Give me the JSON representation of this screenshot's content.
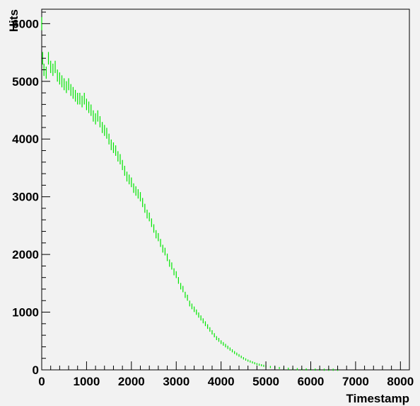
{
  "chart_data": {
    "type": "scatter",
    "title": "",
    "xlabel": "Timestamp",
    "ylabel": "Hits",
    "xlim": [
      0,
      8200
    ],
    "ylim": [
      0,
      6250
    ],
    "x_ticks": [
      0,
      1000,
      2000,
      3000,
      4000,
      5000,
      6000,
      7000,
      8000
    ],
    "x_tick_labels": [
      "0",
      "1000",
      "2000",
      "3000",
      "4000",
      "5000",
      "6000",
      "7000",
      "8000"
    ],
    "y_ticks": [
      0,
      1000,
      2000,
      3000,
      4000,
      5000,
      6000
    ],
    "y_tick_labels": [
      "0",
      "1000",
      "2000",
      "3000",
      "4000",
      "5000",
      "6000"
    ],
    "grid": false,
    "legend": "none",
    "marker_color": "#00e600",
    "background_color": "#f2f2f2",
    "series": [
      {
        "points": [
          [
            0,
            6000
          ],
          [
            20,
            5400
          ],
          [
            50,
            5200
          ],
          [
            100,
            5150
          ],
          [
            150,
            5400
          ],
          [
            200,
            5250
          ],
          [
            250,
            5200
          ],
          [
            300,
            5250
          ],
          [
            350,
            5100
          ],
          [
            400,
            5050
          ],
          [
            450,
            5000
          ],
          [
            500,
            4950
          ],
          [
            550,
            4900
          ],
          [
            600,
            4950
          ],
          [
            650,
            4850
          ],
          [
            700,
            4800
          ],
          [
            750,
            4750
          ],
          [
            800,
            4700
          ],
          [
            850,
            4700
          ],
          [
            900,
            4650
          ],
          [
            950,
            4700
          ],
          [
            1000,
            4600
          ],
          [
            1050,
            4550
          ],
          [
            1100,
            4500
          ],
          [
            1150,
            4400
          ],
          [
            1200,
            4350
          ],
          [
            1250,
            4400
          ],
          [
            1300,
            4300
          ],
          [
            1350,
            4200
          ],
          [
            1400,
            4150
          ],
          [
            1450,
            4100
          ],
          [
            1500,
            4000
          ],
          [
            1550,
            3900
          ],
          [
            1600,
            3850
          ],
          [
            1650,
            3800
          ],
          [
            1700,
            3700
          ],
          [
            1750,
            3650
          ],
          [
            1800,
            3550
          ],
          [
            1850,
            3450
          ],
          [
            1900,
            3350
          ],
          [
            1950,
            3300
          ],
          [
            2000,
            3250
          ],
          [
            2050,
            3150
          ],
          [
            2100,
            3100
          ],
          [
            2150,
            3050
          ],
          [
            2200,
            3000
          ],
          [
            2250,
            2900
          ],
          [
            2300,
            2800
          ],
          [
            2350,
            2700
          ],
          [
            2400,
            2650
          ],
          [
            2450,
            2550
          ],
          [
            2500,
            2450
          ],
          [
            2550,
            2350
          ],
          [
            2600,
            2300
          ],
          [
            2650,
            2200
          ],
          [
            2700,
            2100
          ],
          [
            2750,
            2050
          ],
          [
            2800,
            1950
          ],
          [
            2850,
            1850
          ],
          [
            2900,
            1800
          ],
          [
            2950,
            1700
          ],
          [
            3000,
            1650
          ],
          [
            3050,
            1550
          ],
          [
            3100,
            1450
          ],
          [
            3150,
            1400
          ],
          [
            3200,
            1300
          ],
          [
            3250,
            1250
          ],
          [
            3300,
            1150
          ],
          [
            3350,
            1100
          ],
          [
            3400,
            1050
          ],
          [
            3450,
            1000
          ],
          [
            3500,
            950
          ],
          [
            3550,
            900
          ],
          [
            3600,
            850
          ],
          [
            3650,
            800
          ],
          [
            3700,
            750
          ],
          [
            3750,
            700
          ],
          [
            3800,
            650
          ],
          [
            3850,
            600
          ],
          [
            3900,
            550
          ],
          [
            3950,
            520
          ],
          [
            4000,
            480
          ],
          [
            4050,
            450
          ],
          [
            4100,
            420
          ],
          [
            4150,
            390
          ],
          [
            4200,
            360
          ],
          [
            4250,
            330
          ],
          [
            4300,
            300
          ],
          [
            4350,
            275
          ],
          [
            4400,
            250
          ],
          [
            4450,
            225
          ],
          [
            4500,
            200
          ],
          [
            4550,
            180
          ],
          [
            4600,
            160
          ],
          [
            4650,
            145
          ],
          [
            4700,
            130
          ],
          [
            4750,
            115
          ],
          [
            4800,
            100
          ],
          [
            4850,
            90
          ],
          [
            4900,
            80
          ],
          [
            4950,
            70
          ],
          [
            5000,
            60
          ],
          [
            5100,
            50
          ],
          [
            5200,
            40
          ],
          [
            5300,
            32
          ],
          [
            5400,
            26
          ],
          [
            5500,
            20
          ],
          [
            5600,
            16
          ],
          [
            5700,
            12
          ],
          [
            5800,
            10
          ],
          [
            5900,
            8
          ],
          [
            6000,
            6
          ],
          [
            6100,
            5
          ],
          [
            6200,
            4
          ],
          [
            6300,
            3
          ],
          [
            6400,
            2
          ],
          [
            6500,
            2
          ],
          [
            6600,
            1
          ]
        ]
      }
    ]
  }
}
